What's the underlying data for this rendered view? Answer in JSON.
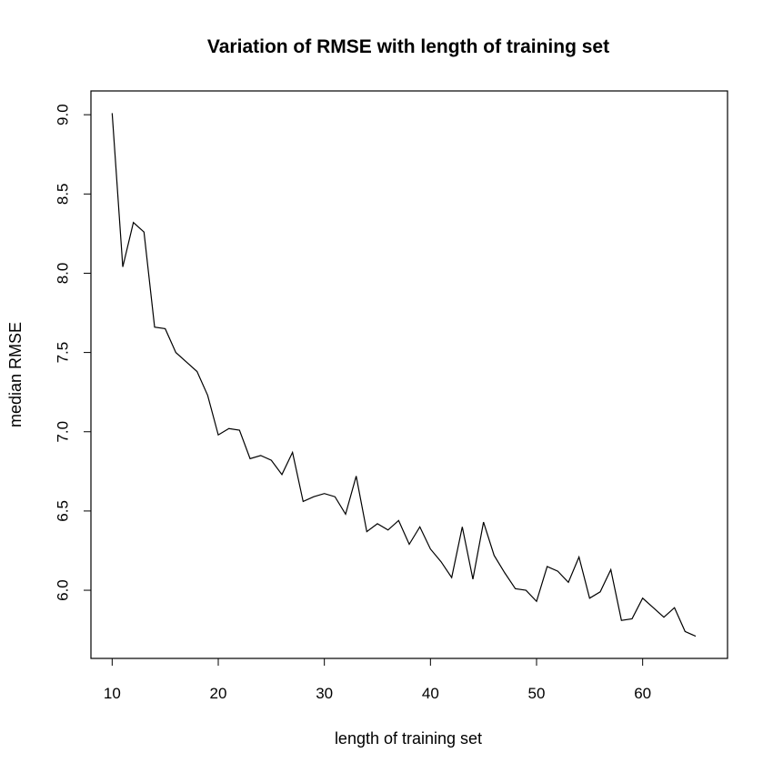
{
  "chart_data": {
    "type": "line",
    "title": "Variation of RMSE with length of training set",
    "xlabel": "length of training set",
    "ylabel": "median RMSE",
    "xlim": [
      8,
      68
    ],
    "ylim": [
      5.57,
      9.15
    ],
    "xticks": [
      10,
      20,
      30,
      40,
      50,
      60
    ],
    "yticks": [
      6.0,
      6.5,
      7.0,
      7.5,
      8.0,
      8.5,
      9.0
    ],
    "ytick_labels": [
      "6.0",
      "6.5",
      "7.0",
      "7.5",
      "8.0",
      "8.5",
      "9.0"
    ],
    "grid": false,
    "series": [
      {
        "color": "#000000",
        "x": [
          10,
          11,
          12,
          13,
          14,
          15,
          16,
          17,
          18,
          19,
          20,
          21,
          22,
          23,
          24,
          25,
          26,
          27,
          28,
          29,
          30,
          31,
          32,
          33,
          34,
          35,
          36,
          37,
          38,
          39,
          40,
          41,
          42,
          43,
          44,
          45,
          46,
          47,
          48,
          49,
          50,
          51,
          52,
          53,
          54,
          55,
          56,
          57,
          58,
          59,
          60,
          61,
          62,
          63,
          64,
          65
        ],
        "y": [
          9.01,
          8.04,
          8.32,
          8.26,
          7.66,
          7.65,
          7.5,
          7.44,
          7.38,
          7.23,
          6.98,
          7.02,
          7.01,
          6.83,
          6.85,
          6.82,
          6.73,
          6.87,
          6.56,
          6.59,
          6.61,
          6.59,
          6.48,
          6.72,
          6.37,
          6.42,
          6.38,
          6.44,
          6.29,
          6.4,
          6.26,
          6.18,
          6.08,
          6.4,
          6.07,
          6.43,
          6.22,
          6.11,
          6.01,
          6.0,
          5.93,
          6.15,
          6.12,
          6.05,
          6.21,
          5.95,
          5.99,
          6.13,
          5.81,
          5.82,
          5.95,
          5.89,
          5.83,
          5.89,
          5.74,
          5.71
        ]
      }
    ]
  }
}
